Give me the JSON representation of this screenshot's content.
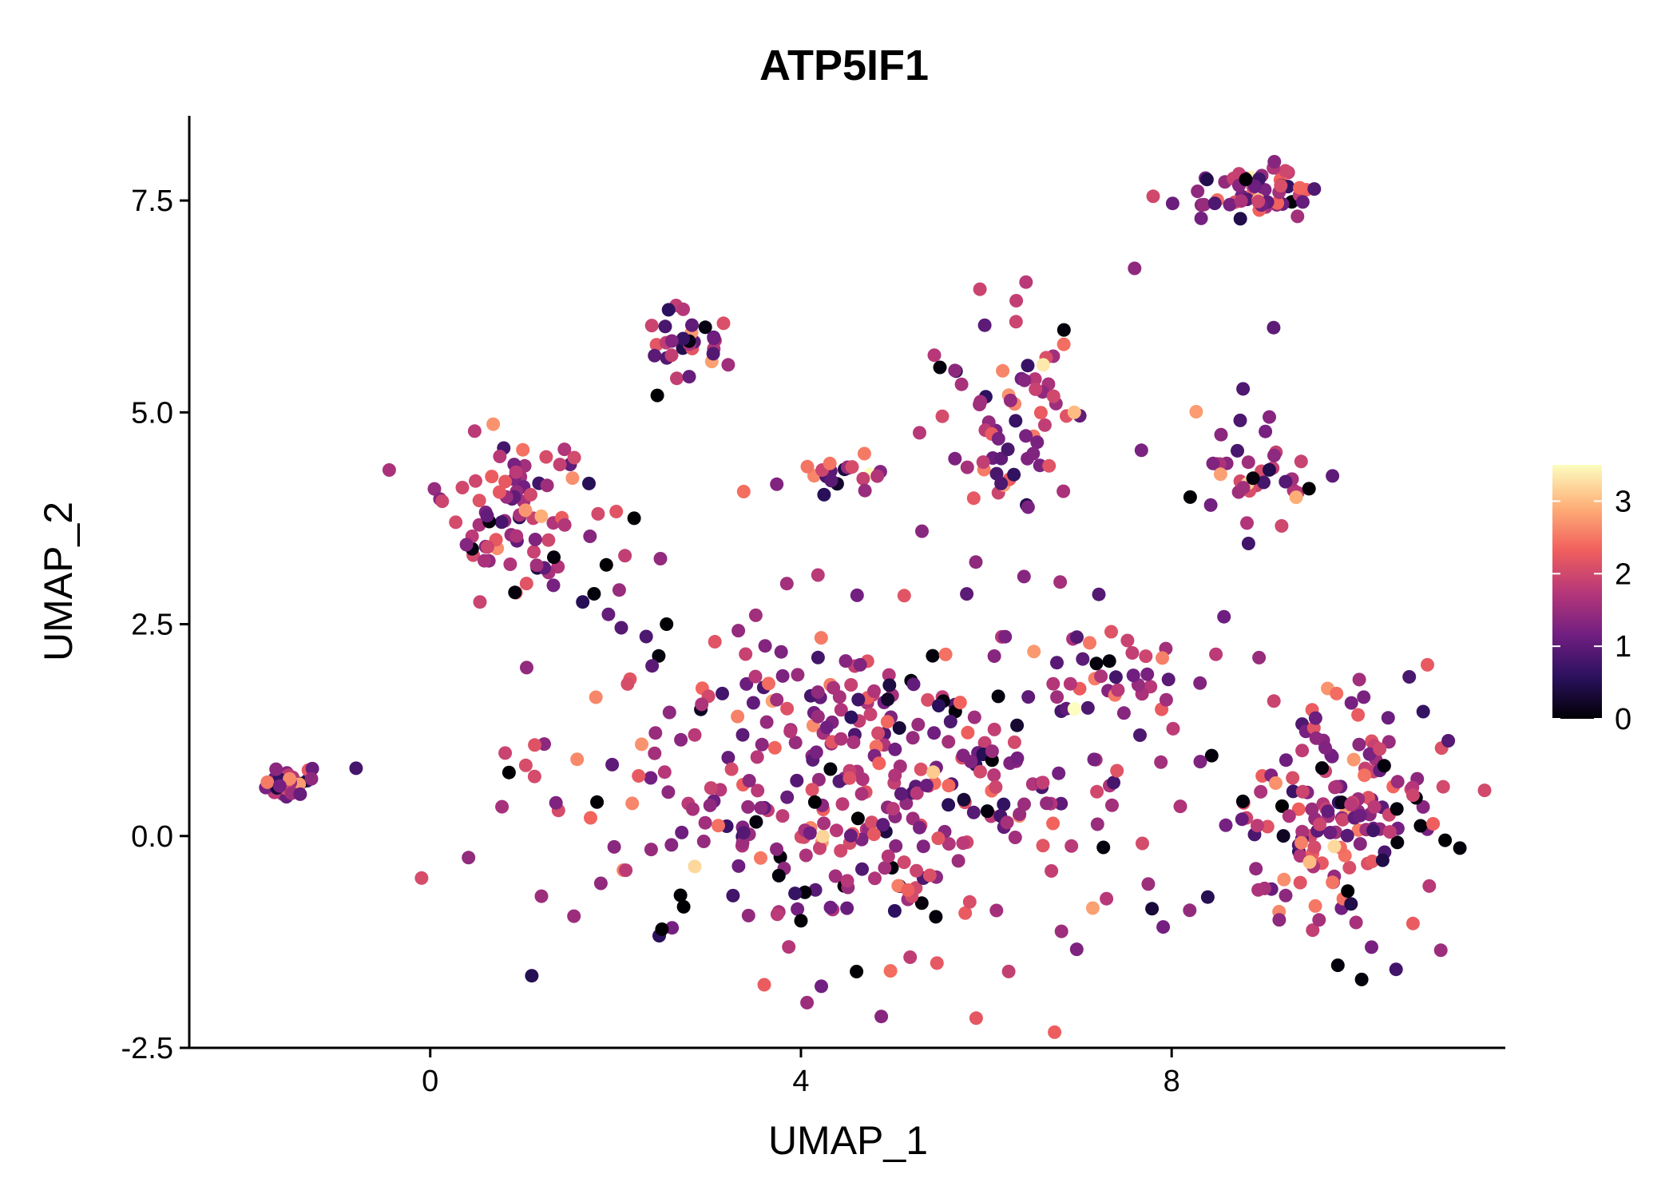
{
  "chart_data": {
    "type": "scatter",
    "title": "ATP5IF1",
    "xlabel": "UMAP_1",
    "ylabel": "UMAP_2",
    "xlim": [
      -2.6,
      11.6
    ],
    "ylim": [
      -2.5,
      8.5
    ],
    "xticks": [
      0,
      4,
      8
    ],
    "xtick_labels": [
      "0",
      "4",
      "8"
    ],
    "yticks": [
      -2.5,
      0,
      2.5,
      5,
      7.5
    ],
    "ytick_labels": [
      "-2.5",
      "0.0",
      "2.5",
      "5.0",
      "7.5"
    ],
    "grid": false,
    "legend": {
      "position": "right",
      "type": "colorbar",
      "min": 0,
      "max": 3.5,
      "ticks": [
        0,
        1,
        2,
        3
      ],
      "tick_labels": [
        "0",
        "1",
        "2",
        "3"
      ]
    },
    "colormap": [
      "#000004",
      "#2c115f",
      "#721f81",
      "#b73779",
      "#f1605d",
      "#feb078",
      "#fcfdbf"
    ],
    "point_color_sample": "expression",
    "clusters": [
      {
        "name": "far-left",
        "x": -1.5,
        "y": 0.65,
        "sx": 0.15,
        "sy": 0.1,
        "n": 30
      },
      {
        "name": "left-main",
        "x": 0.95,
        "y": 3.8,
        "sx": 0.4,
        "sy": 0.45,
        "n": 85
      },
      {
        "name": "upper-mid",
        "x": 2.8,
        "y": 5.8,
        "sx": 0.3,
        "sy": 0.25,
        "n": 30
      },
      {
        "name": "mid-small",
        "x": 4.4,
        "y": 4.25,
        "sx": 0.3,
        "sy": 0.12,
        "n": 22
      },
      {
        "name": "upper-right-mid",
        "x": 6.2,
        "y": 4.8,
        "sx": 0.45,
        "sy": 0.65,
        "n": 70
      },
      {
        "name": "top-right",
        "x": 8.9,
        "y": 7.6,
        "sx": 0.35,
        "sy": 0.15,
        "n": 55
      },
      {
        "name": "right-mid",
        "x": 8.8,
        "y": 4.3,
        "sx": 0.45,
        "sy": 0.35,
        "n": 40
      },
      {
        "name": "center-big",
        "x": 4.6,
        "y": 0.6,
        "sx": 1.6,
        "sy": 1.05,
        "n": 380
      },
      {
        "name": "right-big",
        "x": 9.7,
        "y": 0.3,
        "sx": 0.65,
        "sy": 0.75,
        "n": 170
      },
      {
        "name": "bridge",
        "x": 7.4,
        "y": 1.9,
        "sx": 0.45,
        "sy": 0.35,
        "n": 35
      }
    ],
    "special_points": [
      {
        "x": 2.45,
        "y": 5.2,
        "value": 0
      },
      {
        "x": 2.2,
        "y": 3.75,
        "value": 0
      },
      {
        "x": 1.9,
        "y": 3.2,
        "value": 0
      },
      {
        "x": 2.55,
        "y": 2.5,
        "value": 0
      },
      {
        "x": 0.85,
        "y": 0.75,
        "value": 0
      },
      {
        "x": 1.8,
        "y": 0.4,
        "value": 0
      },
      {
        "x": 4.15,
        "y": 0.4,
        "value": 0
      },
      {
        "x": 2.7,
        "y": -0.7,
        "value": 0
      },
      {
        "x": 2.5,
        "y": -1.1,
        "value": 0
      },
      {
        "x": 4.0,
        "y": -1.0,
        "value": 0
      },
      {
        "x": 4.6,
        "y": -1.6,
        "value": 0
      },
      {
        "x": 9.9,
        "y": -0.65,
        "value": 0
      },
      {
        "x": 10.95,
        "y": -0.05,
        "value": 0
      },
      {
        "x": 8.2,
        "y": 4.0,
        "value": 0
      },
      {
        "x": 8.8,
        "y": 7.75,
        "value": 0
      },
      {
        "x": -0.8,
        "y": 0.8,
        "value": 0.8
      },
      {
        "x": 6.95,
        "y": 5.0,
        "value": 3.0
      },
      {
        "x": 6.95,
        "y": 1.5,
        "value": 3.5
      },
      {
        "x": 7.6,
        "y": 6.7,
        "value": 1.4
      },
      {
        "x": 9.1,
        "y": 6.0,
        "value": 1.0
      },
      {
        "x": 7.8,
        "y": 7.55,
        "value": 2.0
      }
    ]
  }
}
